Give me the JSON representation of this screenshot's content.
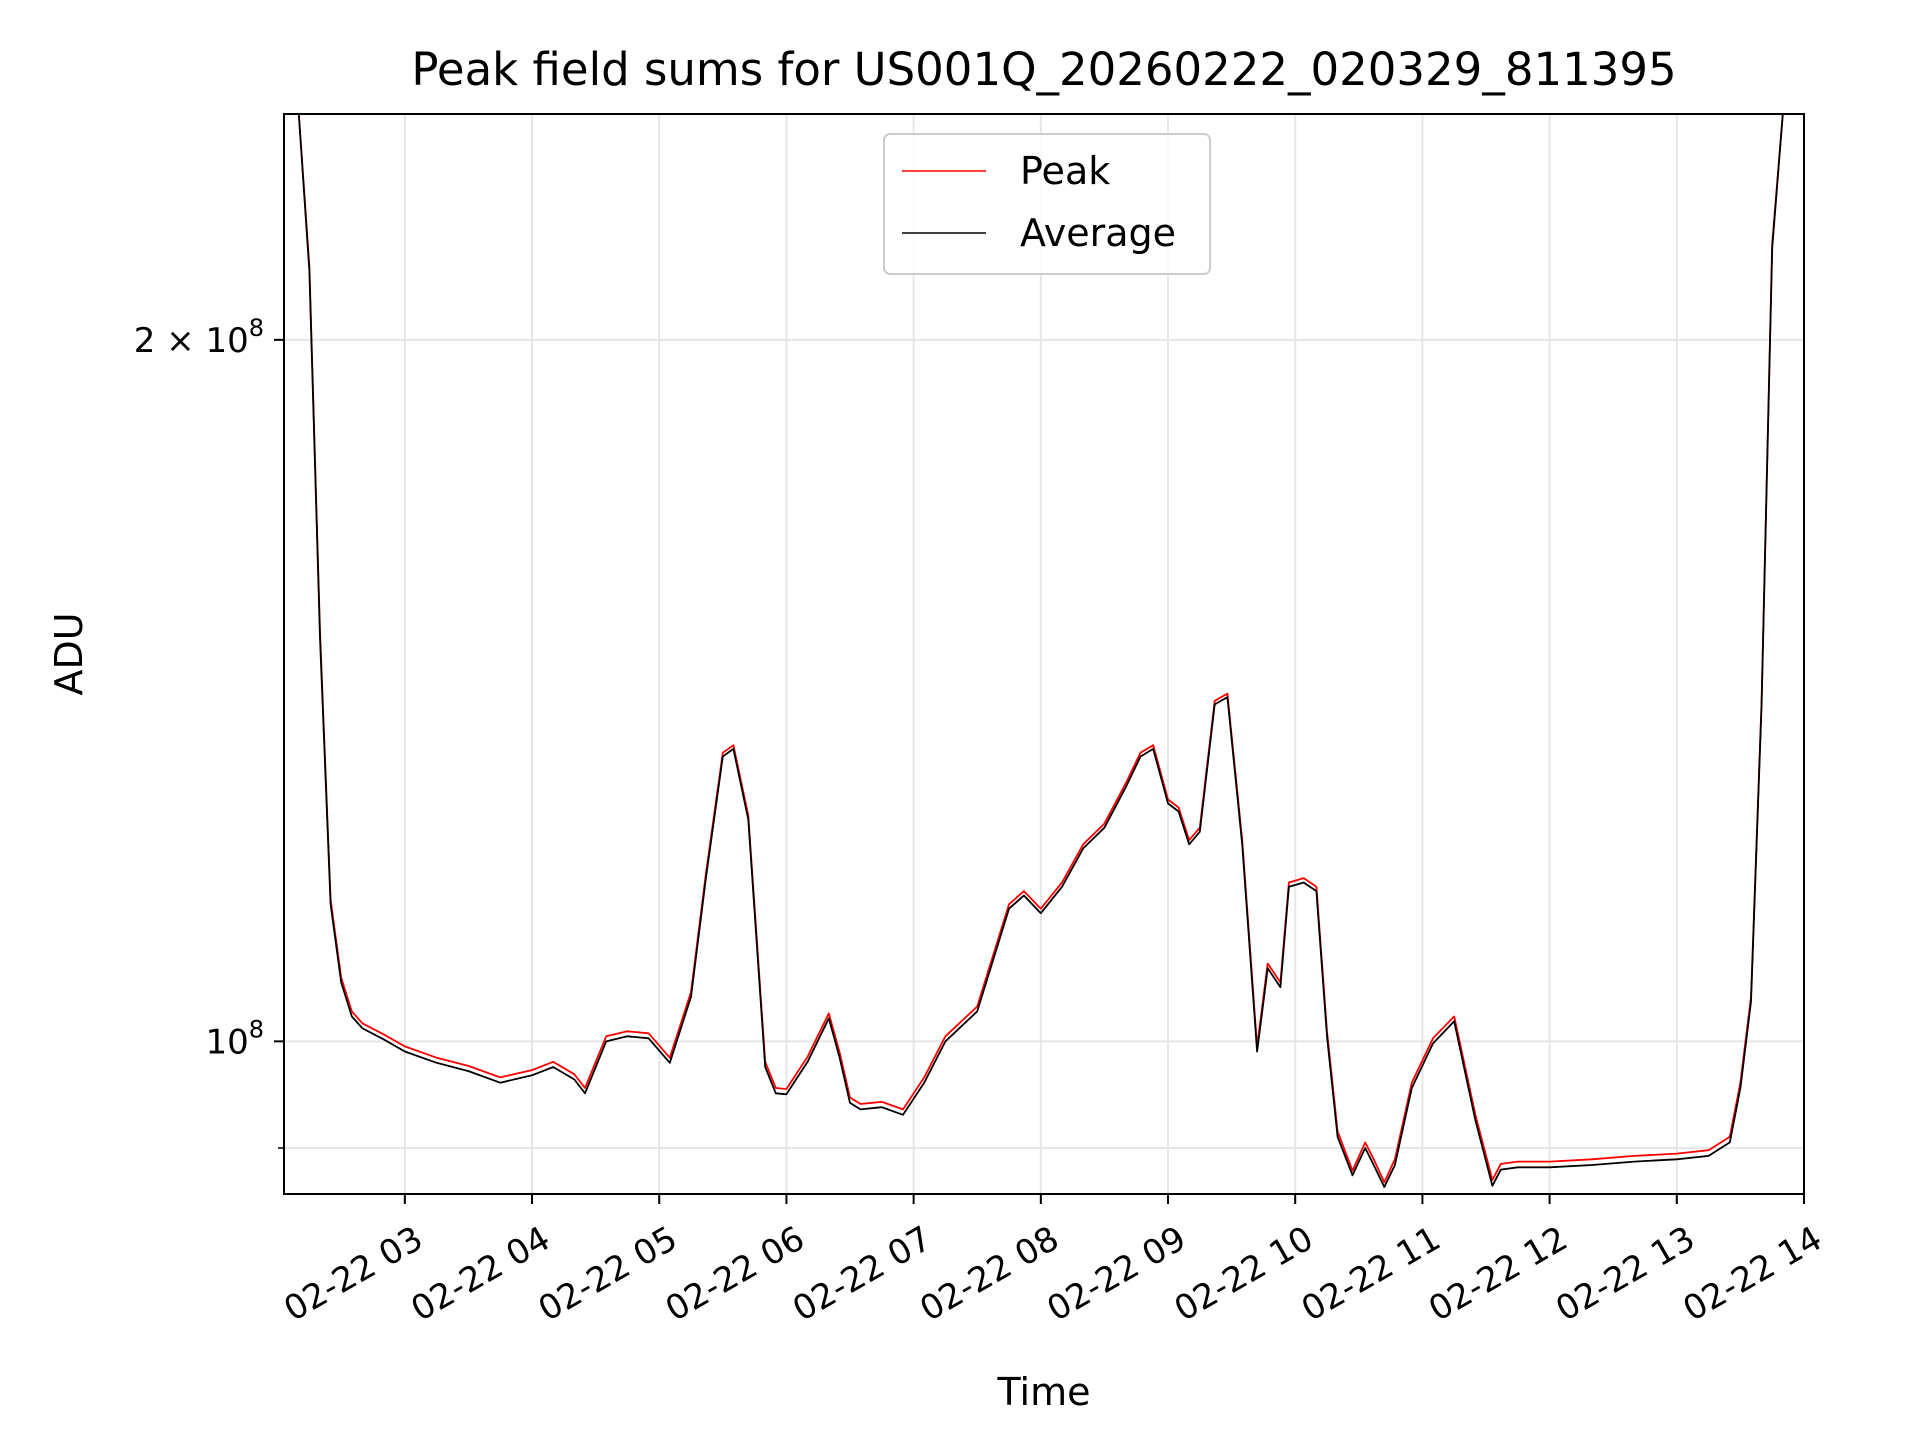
{
  "chart_data": {
    "type": "line",
    "title": "Peak field sums for US001Q_20260222_020329_811395",
    "xlabel": "Time",
    "ylabel": "ADU",
    "y_scale": "log",
    "ylim": [
      86000000,
      250000000
    ],
    "xlim": [
      "2026-02-22 02:03",
      "2026-02-22 14:00"
    ],
    "x_ticks": [
      {
        "value": "2026-02-22 03:00",
        "label": "02-22 03"
      },
      {
        "value": "2026-02-22 04:00",
        "label": "02-22 04"
      },
      {
        "value": "2026-02-22 05:00",
        "label": "02-22 05"
      },
      {
        "value": "2026-02-22 06:00",
        "label": "02-22 06"
      },
      {
        "value": "2026-02-22 07:00",
        "label": "02-22 07"
      },
      {
        "value": "2026-02-22 08:00",
        "label": "02-22 08"
      },
      {
        "value": "2026-02-22 09:00",
        "label": "02-22 09"
      },
      {
        "value": "2026-02-22 10:00",
        "label": "02-22 10"
      },
      {
        "value": "2026-02-22 11:00",
        "label": "02-22 11"
      },
      {
        "value": "2026-02-22 12:00",
        "label": "02-22 12"
      },
      {
        "value": "2026-02-22 13:00",
        "label": "02-22 13"
      },
      {
        "value": "2026-02-22 14:00",
        "label": "02-22 14"
      }
    ],
    "y_ticks": [
      {
        "value": 100000000,
        "base": "10",
        "exp": "8",
        "coef": ""
      },
      {
        "value": 200000000,
        "base": "10",
        "exp": "8",
        "coef": "2 × "
      }
    ],
    "y_minor_ticks": [
      90000000
    ],
    "grid": true,
    "legend_position": "top-center",
    "series": [
      {
        "name": "Peak",
        "color": "#ff0000",
        "x": [
          "2026-02-22 02:03",
          "2026-02-22 02:10",
          "2026-02-22 02:15",
          "2026-02-22 02:20",
          "2026-02-22 02:25",
          "2026-02-22 02:30",
          "2026-02-22 02:35",
          "2026-02-22 02:40",
          "2026-02-22 02:50",
          "2026-02-22 03:00",
          "2026-02-22 03:15",
          "2026-02-22 03:30",
          "2026-02-22 03:45",
          "2026-02-22 04:00",
          "2026-02-22 04:10",
          "2026-02-22 04:20",
          "2026-02-22 04:25",
          "2026-02-22 04:35",
          "2026-02-22 04:45",
          "2026-02-22 04:55",
          "2026-02-22 05:05",
          "2026-02-22 05:15",
          "2026-02-22 05:22",
          "2026-02-22 05:30",
          "2026-02-22 05:35",
          "2026-02-22 05:42",
          "2026-02-22 05:50",
          "2026-02-22 05:55",
          "2026-02-22 06:00",
          "2026-02-22 06:10",
          "2026-02-22 06:20",
          "2026-02-22 06:25",
          "2026-02-22 06:30",
          "2026-02-22 06:35",
          "2026-02-22 06:45",
          "2026-02-22 06:55",
          "2026-02-22 07:05",
          "2026-02-22 07:15",
          "2026-02-22 07:30",
          "2026-02-22 07:45",
          "2026-02-22 07:52",
          "2026-02-22 08:00",
          "2026-02-22 08:10",
          "2026-02-22 08:20",
          "2026-02-22 08:30",
          "2026-02-22 08:40",
          "2026-02-22 08:47",
          "2026-02-22 08:53",
          "2026-02-22 09:00",
          "2026-02-22 09:05",
          "2026-02-22 09:10",
          "2026-02-22 09:15",
          "2026-02-22 09:22",
          "2026-02-22 09:28",
          "2026-02-22 09:35",
          "2026-02-22 09:42",
          "2026-02-22 09:47",
          "2026-02-22 09:53",
          "2026-02-22 09:57",
          "2026-02-22 10:04",
          "2026-02-22 10:10",
          "2026-02-22 10:15",
          "2026-02-22 10:20",
          "2026-02-22 10:27",
          "2026-02-22 10:33",
          "2026-02-22 10:37",
          "2026-02-22 10:42",
          "2026-02-22 10:47",
          "2026-02-22 10:55",
          "2026-02-22 11:05",
          "2026-02-22 11:15",
          "2026-02-22 11:25",
          "2026-02-22 11:33",
          "2026-02-22 11:37",
          "2026-02-22 11:45",
          "2026-02-22 12:00",
          "2026-02-22 12:20",
          "2026-02-22 12:40",
          "2026-02-22 13:00",
          "2026-02-22 13:15",
          "2026-02-22 13:25",
          "2026-02-22 13:30",
          "2026-02-22 13:35",
          "2026-02-22 13:40",
          "2026-02-22 13:45",
          "2026-02-22 13:50",
          "2026-02-22 13:55",
          "2026-02-22 14:00"
        ],
        "values": [
          250000000,
          250000000,
          215000000,
          150000000,
          115000000,
          106500000,
          103000000,
          101800000,
          100700000,
          99500000,
          98400000,
          97600000,
          96500000,
          97200000,
          98000000,
          96800000,
          95500000,
          100500000,
          101000000,
          100800000,
          98400000,
          105000000,
          118000000,
          133000000,
          134000000,
          125000000,
          98000000,
          95500000,
          95400000,
          98500000,
          102800000,
          99000000,
          94600000,
          94000000,
          94200000,
          93500000,
          96500000,
          100500000,
          103500000,
          114500000,
          116000000,
          114000000,
          117000000,
          121500000,
          124000000,
          129000000,
          133000000,
          134000000,
          127000000,
          126000000,
          122000000,
          123500000,
          140000000,
          141000000,
          122000000,
          99500000,
          108000000,
          106000000,
          117000000,
          117500000,
          116500000,
          101000000,
          91500000,
          88000000,
          90500000,
          89000000,
          87000000,
          89000000,
          96000000,
          100300000,
          102500000,
          93000000,
          87200000,
          88600000,
          88800000,
          88800000,
          89000000,
          89300000,
          89500000,
          89800000,
          91000000,
          96000000,
          104500000,
          140000000,
          220000000,
          250000000,
          250000000,
          250000000
        ]
      },
      {
        "name": "Average",
        "color": "#000000",
        "x": [
          "2026-02-22 02:03",
          "2026-02-22 02:10",
          "2026-02-22 02:15",
          "2026-02-22 02:20",
          "2026-02-22 02:25",
          "2026-02-22 02:30",
          "2026-02-22 02:35",
          "2026-02-22 02:40",
          "2026-02-22 02:50",
          "2026-02-22 03:00",
          "2026-02-22 03:15",
          "2026-02-22 03:30",
          "2026-02-22 03:45",
          "2026-02-22 04:00",
          "2026-02-22 04:10",
          "2026-02-22 04:20",
          "2026-02-22 04:25",
          "2026-02-22 04:35",
          "2026-02-22 04:45",
          "2026-02-22 04:55",
          "2026-02-22 05:05",
          "2026-02-22 05:15",
          "2026-02-22 05:22",
          "2026-02-22 05:30",
          "2026-02-22 05:35",
          "2026-02-22 05:42",
          "2026-02-22 05:50",
          "2026-02-22 05:55",
          "2026-02-22 06:00",
          "2026-02-22 06:10",
          "2026-02-22 06:20",
          "2026-02-22 06:25",
          "2026-02-22 06:30",
          "2026-02-22 06:35",
          "2026-02-22 06:45",
          "2026-02-22 06:55",
          "2026-02-22 07:05",
          "2026-02-22 07:15",
          "2026-02-22 07:30",
          "2026-02-22 07:45",
          "2026-02-22 07:52",
          "2026-02-22 08:00",
          "2026-02-22 08:10",
          "2026-02-22 08:20",
          "2026-02-22 08:30",
          "2026-02-22 08:40",
          "2026-02-22 08:47",
          "2026-02-22 08:53",
          "2026-02-22 09:00",
          "2026-02-22 09:05",
          "2026-02-22 09:10",
          "2026-02-22 09:15",
          "2026-02-22 09:22",
          "2026-02-22 09:28",
          "2026-02-22 09:35",
          "2026-02-22 09:42",
          "2026-02-22 09:47",
          "2026-02-22 09:53",
          "2026-02-22 09:57",
          "2026-02-22 10:04",
          "2026-02-22 10:10",
          "2026-02-22 10:15",
          "2026-02-22 10:20",
          "2026-02-22 10:27",
          "2026-02-22 10:33",
          "2026-02-22 10:37",
          "2026-02-22 10:42",
          "2026-02-22 10:47",
          "2026-02-22 10:55",
          "2026-02-22 11:05",
          "2026-02-22 11:15",
          "2026-02-22 11:25",
          "2026-02-22 11:33",
          "2026-02-22 11:37",
          "2026-02-22 11:45",
          "2026-02-22 12:00",
          "2026-02-22 12:20",
          "2026-02-22 12:40",
          "2026-02-22 13:00",
          "2026-02-22 13:15",
          "2026-02-22 13:25",
          "2026-02-22 13:30",
          "2026-02-22 13:35",
          "2026-02-22 13:40",
          "2026-02-22 13:45",
          "2026-02-22 13:50",
          "2026-02-22 13:55",
          "2026-02-22 14:00"
        ],
        "values": [
          250000000,
          250000000,
          214000000,
          149000000,
          114500000,
          106000000,
          102500000,
          101300000,
          100200000,
          99000000,
          97900000,
          97100000,
          96000000,
          96700000,
          97500000,
          96300000,
          95000000,
          100000000,
          100500000,
          100300000,
          97900000,
          104500000,
          117500000,
          132500000,
          133500000,
          124500000,
          97500000,
          95000000,
          94900000,
          98000000,
          102300000,
          98500000,
          94100000,
          93500000,
          93700000,
          93000000,
          96000000,
          100000000,
          103000000,
          114000000,
          115500000,
          113500000,
          116500000,
          121000000,
          123500000,
          128500000,
          132500000,
          133500000,
          126500000,
          125500000,
          121500000,
          123000000,
          139500000,
          140500000,
          121500000,
          99000000,
          107500000,
          105500000,
          116500000,
          117000000,
          116000000,
          100500000,
          91000000,
          87600000,
          90000000,
          88500000,
          86600000,
          88500000,
          95500000,
          99800000,
          102000000,
          92500000,
          86700000,
          88100000,
          88300000,
          88300000,
          88500000,
          88800000,
          89000000,
          89300000,
          90500000,
          95500000,
          104000000,
          139500000,
          219000000,
          250000000,
          250000000,
          250000000
        ]
      }
    ]
  }
}
